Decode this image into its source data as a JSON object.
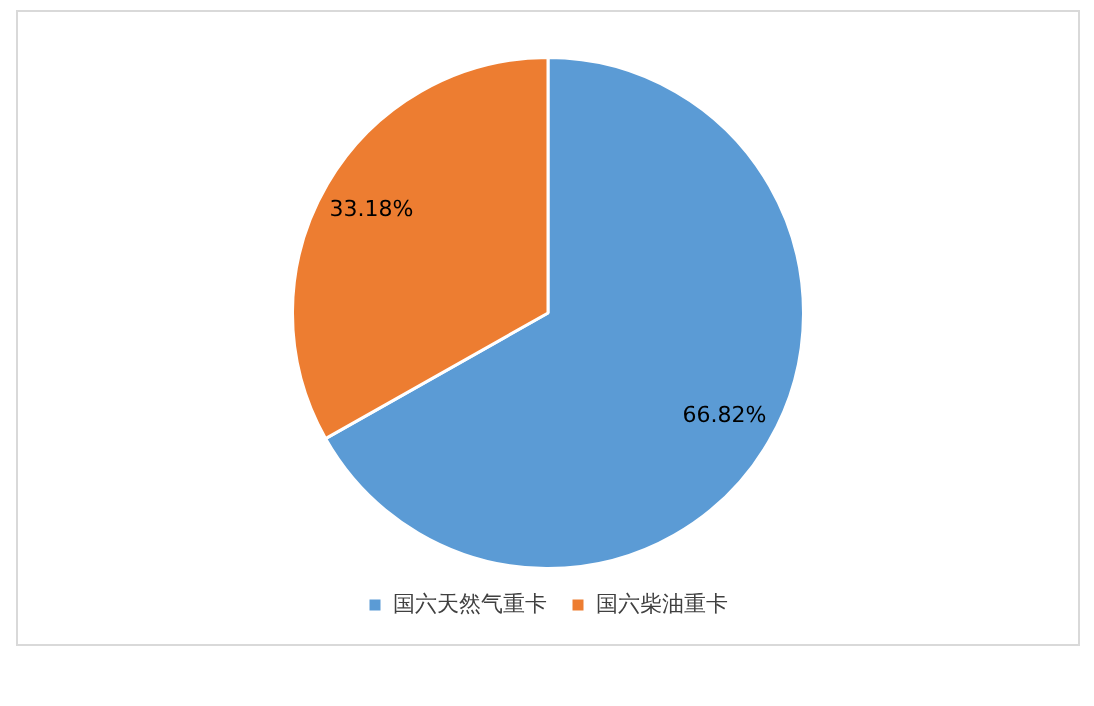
{
  "chart_data": {
    "type": "pie",
    "categories": [
      "国六天然气重卡",
      "国六柴油重卡"
    ],
    "values": [
      66.82,
      33.18
    ],
    "colors": [
      "#5b9bd5",
      "#ed7d31"
    ],
    "value_labels": [
      "66.82%",
      "33.18%"
    ],
    "legend": "bottom"
  }
}
